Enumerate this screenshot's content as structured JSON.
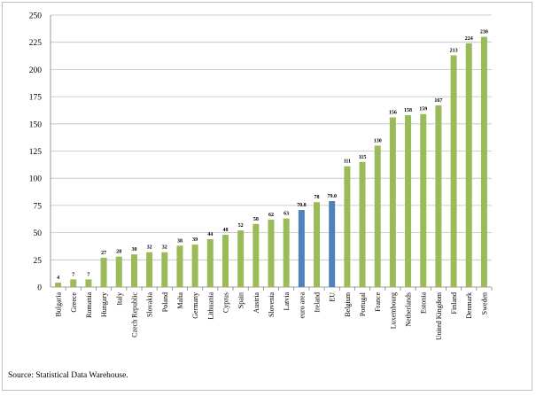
{
  "colors": {
    "bar": "#9bbb59",
    "bar_highlight": "#4f81bd",
    "grid": "#bfbfbf",
    "axis": "#808080"
  },
  "source": "Source: Statistical Data Warehouse.",
  "chart_data": {
    "type": "bar",
    "title": "",
    "xlabel": "",
    "ylabel": "",
    "ylim": [
      0,
      250
    ],
    "yticks": [
      0,
      25,
      50,
      75,
      100,
      125,
      150,
      175,
      200,
      225,
      250
    ],
    "grid": true,
    "legend": "none",
    "categories": [
      "Bulgaria",
      "Greece",
      "Romania",
      "Hungary",
      "Italy",
      "Czech Republic",
      "Slovakia",
      "Poland",
      "Malta",
      "Germany",
      "Lithuania",
      "Cyprus",
      "Spain",
      "Austria",
      "Slovenia",
      "Latvia",
      "euro area",
      "Ireland",
      "EU",
      "Belgium",
      "Portugal",
      "France",
      "Luxembourg",
      "Netherlands",
      "Estonia",
      "United Kingdom",
      "Finland",
      "Denmark",
      "Sweden"
    ],
    "values": [
      4,
      7,
      7,
      27,
      28,
      30,
      32,
      32,
      38,
      39,
      44,
      48,
      52,
      58,
      62,
      63,
      70.8,
      78,
      79.0,
      111,
      115,
      130,
      156,
      158,
      159,
      167,
      213,
      224,
      230
    ],
    "value_labels": [
      "4",
      "7",
      "7",
      "27",
      "28",
      "30",
      "32",
      "32",
      "38",
      "39",
      "44",
      "48",
      "52",
      "58",
      "62",
      "63",
      "70.8",
      "78",
      "79.0",
      "111",
      "115",
      "130",
      "156",
      "158",
      "159",
      "167",
      "213",
      "224",
      "230"
    ],
    "highlighted": [
      "euro area",
      "EU"
    ]
  }
}
